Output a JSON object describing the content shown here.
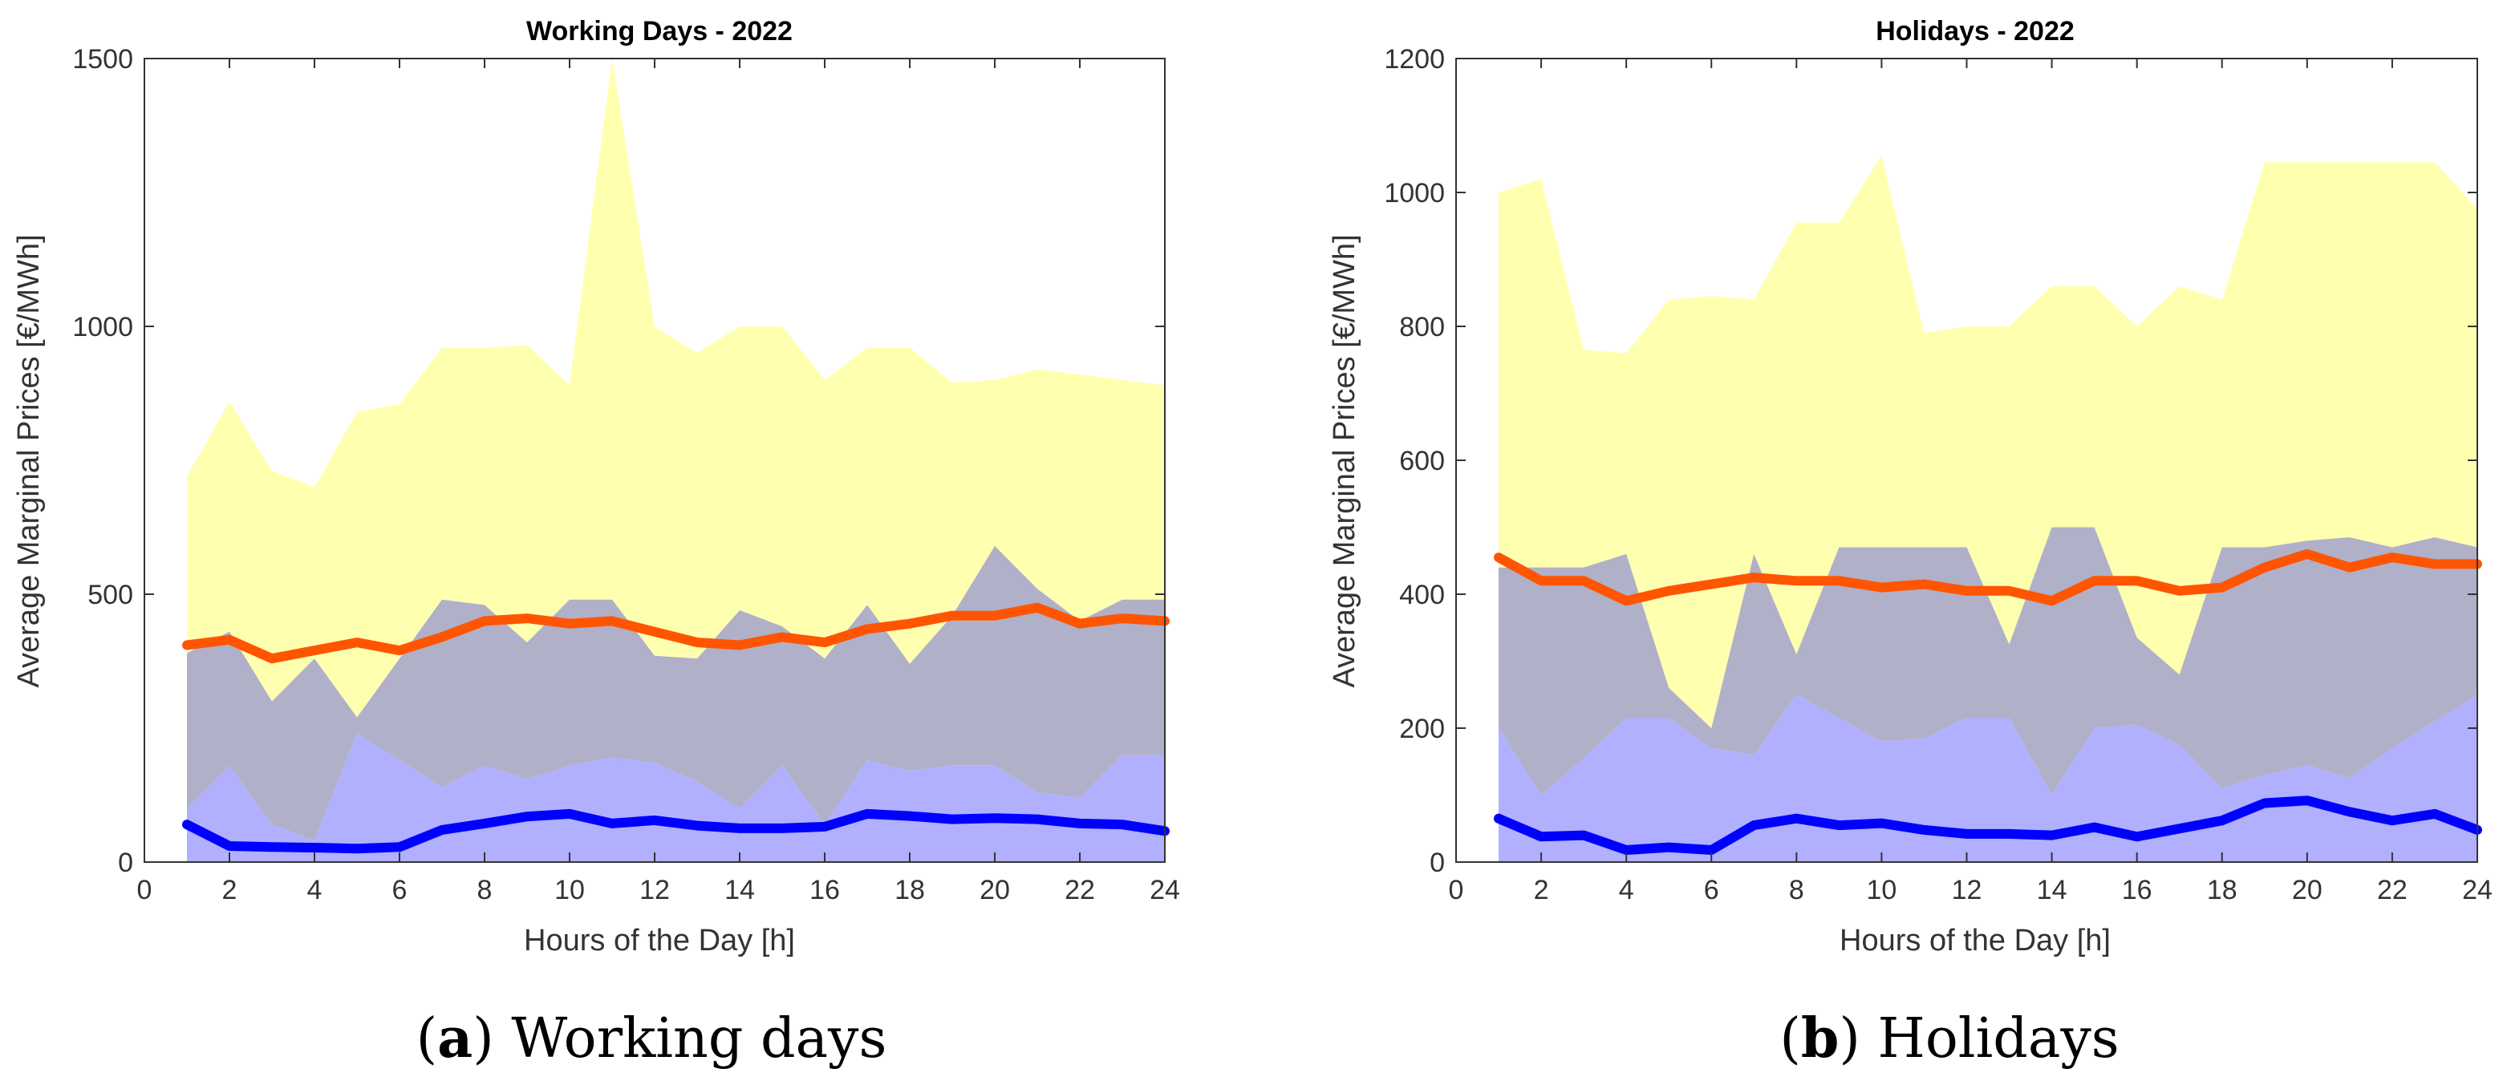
{
  "chart_data": [
    {
      "type": "area",
      "title": "Working Days - 2022",
      "xlabel": "Hours of the Day [h]",
      "ylabel": "Average Marginal Prices [€/MWh]",
      "caption_letter": "a",
      "caption_text": " Working days",
      "xlim": [
        0,
        24
      ],
      "ylim": [
        0,
        1500
      ],
      "xticks": [
        "0",
        "2",
        "4",
        "6",
        "8",
        "10",
        "12",
        "14",
        "16",
        "18",
        "20",
        "22",
        "24"
      ],
      "yticks": [
        "0",
        "500",
        "1000",
        "1500"
      ],
      "x": [
        1,
        2,
        3,
        4,
        5,
        6,
        7,
        8,
        9,
        10,
        11,
        12,
        13,
        14,
        15,
        16,
        17,
        18,
        19,
        20,
        21,
        22,
        23,
        24
      ],
      "series": [
        {
          "color": "#ffffb0",
          "opacity": 1,
          "upper": [
            720,
            860,
            730,
            700,
            840,
            855,
            960,
            960,
            965,
            890,
            1500,
            1000,
            950,
            1000,
            1000,
            900,
            960,
            960,
            895,
            900,
            920,
            910,
            900,
            890
          ],
          "lower": [
            390,
            430,
            300,
            380,
            270,
            380,
            490,
            480,
            410,
            490,
            490,
            385,
            380,
            470,
            440,
            380,
            480,
            370,
            460,
            590,
            510,
            450,
            490,
            490
          ]
        },
        {
          "color": "#b0b0c8",
          "opacity": 1,
          "upper": [
            390,
            430,
            300,
            380,
            270,
            380,
            490,
            480,
            410,
            490,
            490,
            385,
            380,
            470,
            440,
            380,
            480,
            370,
            460,
            590,
            510,
            450,
            490,
            490
          ],
          "lower": [
            100,
            180,
            70,
            40,
            240,
            190,
            140,
            180,
            155,
            180,
            195,
            185,
            150,
            100,
            180,
            70,
            190,
            170,
            180,
            180,
            130,
            120,
            200,
            200
          ]
        },
        {
          "color": "#b0b0ff",
          "opacity": 1,
          "upper": [
            100,
            180,
            70,
            40,
            240,
            190,
            140,
            180,
            155,
            180,
            195,
            185,
            150,
            100,
            180,
            70,
            190,
            170,
            180,
            180,
            130,
            120,
            200,
            200
          ],
          "lower": [
            0,
            0,
            0,
            0,
            0,
            0,
            0,
            0,
            0,
            0,
            0,
            0,
            0,
            0,
            0,
            0,
            0,
            0,
            0,
            0,
            0,
            0,
            0,
            0
          ]
        },
        {
          "color": "#ff5500",
          "line": true,
          "stroke": "#ff5500",
          "values": [
            405,
            415,
            380,
            395,
            410,
            395,
            420,
            450,
            455,
            445,
            450,
            430,
            410,
            405,
            420,
            410,
            435,
            445,
            460,
            460,
            475,
            445,
            455,
            450
          ]
        },
        {
          "color": "#0000ff",
          "line": true,
          "stroke": "#0000ff",
          "values": [
            70,
            30,
            28,
            27,
            25,
            28,
            60,
            72,
            85,
            90,
            72,
            78,
            68,
            63,
            63,
            66,
            90,
            86,
            80,
            82,
            80,
            72,
            70,
            58
          ]
        }
      ]
    },
    {
      "type": "area",
      "title": "Holidays - 2022",
      "xlabel": "Hours of the Day [h]",
      "ylabel": "Average Marginal Prices [€/MWh]",
      "caption_letter": "b",
      "caption_text": " Holidays",
      "xlim": [
        0,
        24
      ],
      "ylim": [
        0,
        1200
      ],
      "xticks": [
        "0",
        "2",
        "4",
        "6",
        "8",
        "10",
        "12",
        "14",
        "16",
        "18",
        "20",
        "22",
        "24"
      ],
      "yticks": [
        "0",
        "200",
        "400",
        "600",
        "800",
        "1000",
        "1200"
      ],
      "x": [
        1,
        2,
        3,
        4,
        5,
        6,
        7,
        8,
        9,
        10,
        11,
        12,
        13,
        14,
        15,
        16,
        17,
        18,
        19,
        20,
        21,
        22,
        23,
        24
      ],
      "series": [
        {
          "color": "#ffffb0",
          "opacity": 1,
          "upper": [
            1000,
            1020,
            765,
            760,
            840,
            845,
            840,
            955,
            955,
            1055,
            790,
            800,
            800,
            860,
            860,
            800,
            860,
            840,
            1045,
            1045,
            1045,
            1045,
            1045,
            975
          ],
          "lower": [
            440,
            440,
            440,
            460,
            260,
            200,
            460,
            310,
            470,
            470,
            470,
            470,
            325,
            500,
            500,
            335,
            280,
            470,
            470,
            480,
            485,
            470,
            485,
            470
          ]
        },
        {
          "color": "#b0b0c8",
          "opacity": 1,
          "upper": [
            440,
            440,
            440,
            460,
            260,
            200,
            460,
            310,
            470,
            470,
            470,
            470,
            325,
            500,
            500,
            335,
            280,
            470,
            470,
            480,
            485,
            470,
            485,
            470
          ],
          "lower": [
            200,
            100,
            155,
            215,
            215,
            170,
            160,
            250,
            215,
            180,
            185,
            215,
            215,
            100,
            200,
            205,
            175,
            110,
            130,
            145,
            125,
            170,
            210,
            250
          ]
        },
        {
          "color": "#b0b0ff",
          "opacity": 1,
          "upper": [
            200,
            100,
            155,
            215,
            215,
            170,
            160,
            250,
            215,
            180,
            185,
            215,
            215,
            100,
            200,
            205,
            175,
            110,
            130,
            145,
            125,
            170,
            210,
            250
          ],
          "lower": [
            0,
            0,
            0,
            0,
            0,
            0,
            0,
            0,
            0,
            0,
            0,
            0,
            0,
            0,
            0,
            0,
            0,
            0,
            0,
            0,
            0,
            0,
            0,
            0
          ]
        },
        {
          "color": "#ff5500",
          "line": true,
          "stroke": "#ff5500",
          "values": [
            455,
            420,
            420,
            390,
            405,
            415,
            425,
            420,
            420,
            410,
            415,
            405,
            405,
            390,
            420,
            420,
            405,
            410,
            440,
            460,
            440,
            455,
            445,
            445
          ]
        },
        {
          "color": "#0000ff",
          "line": true,
          "stroke": "#0000ff",
          "values": [
            65,
            38,
            40,
            18,
            22,
            18,
            55,
            65,
            55,
            58,
            48,
            42,
            42,
            40,
            52,
            38,
            50,
            62,
            88,
            92,
            75,
            62,
            72,
            48
          ]
        }
      ]
    }
  ]
}
